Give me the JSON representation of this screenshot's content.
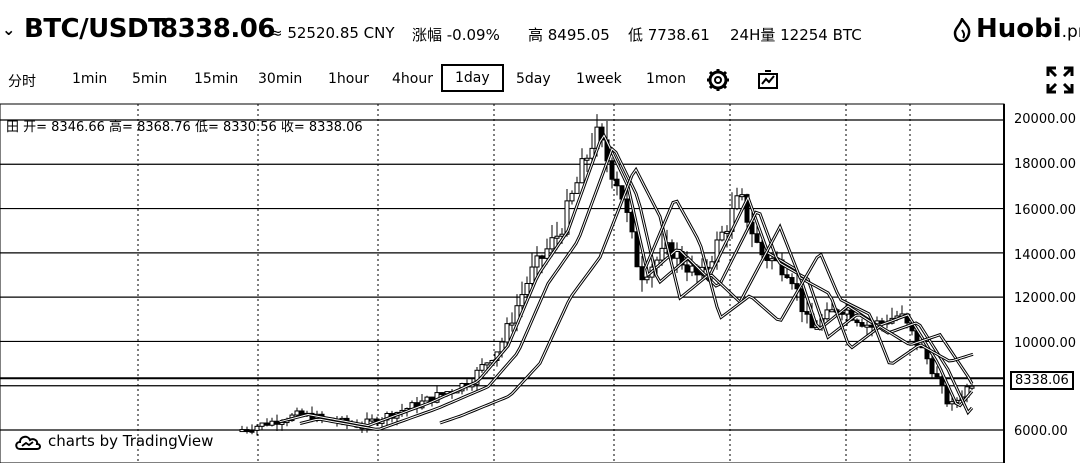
{
  "header": {
    "pair": "BTC/USDT",
    "price": "8338.06",
    "cny": "≈ 52520.85 CNY",
    "change": "涨幅 -0.09%",
    "high": "高 8495.05",
    "low": "低 7738.61",
    "volume": "24H量 12254 BTC",
    "logo": "Huobi",
    "logo_suffix": ".pro"
  },
  "toolbar": {
    "timeframes": [
      "分时",
      "1min",
      "5min",
      "15min",
      "30min",
      "1hour",
      "4hour",
      "1day",
      "5day",
      "1week",
      "1mon"
    ],
    "active": "1day",
    "icons": [
      "settings-icon",
      "indicators-icon",
      "fullscreen-icon"
    ]
  },
  "ohlc_legend": "田 开= 8346.66 高= 8368.76 低= 8330.56 收= 8338.06",
  "chart_data": {
    "type": "candlestick",
    "y_axis_labels": [
      "20000.00",
      "18000.00",
      "16000.00",
      "14000.00",
      "12000.00",
      "10000.00",
      "6000.00"
    ],
    "current_price_label": "8338.06",
    "ylim": [
      5500,
      20500
    ],
    "watermark": "charts by TradingView"
  }
}
